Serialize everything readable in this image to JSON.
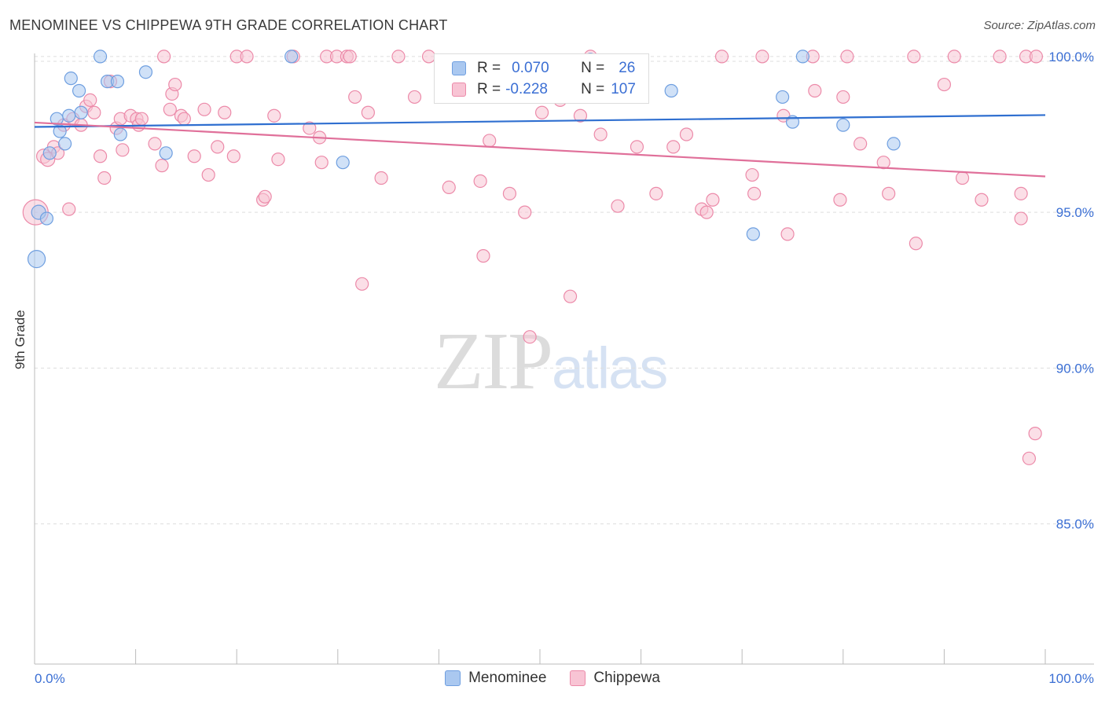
{
  "header": {
    "title": "MENOMINEE VS CHIPPEWA 9TH GRADE CORRELATION CHART",
    "source": "Source: ZipAtlas.com"
  },
  "watermark": {
    "zip": "ZIP",
    "atlas": "atlas"
  },
  "legend": {
    "rows": [
      {
        "r_label": "R =",
        "r_value": "0.070",
        "n_label": "N =",
        "n_value": "26",
        "color": "#aac8f0",
        "border": "#6f9fe0"
      },
      {
        "r_label": "R =",
        "r_value": "-0.228",
        "n_label": "N =",
        "n_value": "107",
        "color": "#f8bccd",
        "border": "#ee8aa8"
      }
    ]
  },
  "bottom_legend": {
    "menominee": "Menominee",
    "chippewa": "Chippewa"
  },
  "colors": {
    "menominee_fill": "#aac8f0",
    "menominee_stroke": "#6f9fe0",
    "menominee_line": "#2f6fd0",
    "chippewa_fill": "#f8c4d4",
    "chippewa_stroke": "#ec8aa9",
    "chippewa_line": "#e0709a",
    "axis_tick_text": "#3b6fd4",
    "grid": "#dddddd"
  },
  "chart_data": {
    "type": "scatter",
    "title": "MENOMINEE VS CHIPPEWA 9TH GRADE CORRELATION CHART",
    "xlabel": "",
    "ylabel": "9th Grade",
    "xlim": [
      0,
      100
    ],
    "ylim": [
      80.5,
      100.3
    ],
    "x_tick_labels": [
      {
        "value": 0,
        "label": "0.0%"
      },
      {
        "value": 100,
        "label": "100.0%"
      }
    ],
    "y_tick_labels": [
      {
        "value": 100,
        "label": "100.0%"
      },
      {
        "value": 95,
        "label": "95.0%"
      },
      {
        "value": 90,
        "label": "90.0%"
      },
      {
        "value": 85,
        "label": "85.0%"
      }
    ],
    "grid": true,
    "legend_position": "top-center",
    "series": [
      {
        "name": "Menominee",
        "trend": {
          "x": [
            0,
            100
          ],
          "y": [
            97.74,
            98.12
          ]
        },
        "points": [
          [
            0.2,
            93.5,
            11
          ],
          [
            0.4,
            95.0,
            9
          ],
          [
            1.2,
            94.8,
            8
          ],
          [
            1.5,
            96.9,
            8
          ],
          [
            2.2,
            98.0,
            8
          ],
          [
            2.5,
            97.6,
            8
          ],
          [
            3.0,
            97.2,
            8
          ],
          [
            3.4,
            98.1,
            8
          ],
          [
            3.6,
            99.3,
            8
          ],
          [
            4.4,
            98.9,
            8
          ],
          [
            4.6,
            98.2,
            8
          ],
          [
            6.5,
            100.0,
            8
          ],
          [
            7.2,
            99.2,
            8
          ],
          [
            8.2,
            99.2,
            8
          ],
          [
            8.5,
            97.5,
            8
          ],
          [
            11.0,
            99.5,
            8
          ],
          [
            13.0,
            96.9,
            8
          ],
          [
            25.4,
            100.0,
            8
          ],
          [
            30.5,
            96.6,
            8
          ],
          [
            55.0,
            99.9,
            8
          ],
          [
            63.0,
            98.9,
            8
          ],
          [
            71.1,
            94.3,
            8
          ],
          [
            74.0,
            98.7,
            8
          ],
          [
            75.0,
            97.9,
            8
          ],
          [
            76.0,
            100.0,
            8
          ],
          [
            80.0,
            97.8,
            8
          ],
          [
            85.0,
            97.2,
            8
          ]
        ]
      },
      {
        "name": "Chippewa",
        "trend": {
          "x": [
            0,
            100
          ],
          "y": [
            97.88,
            96.15
          ]
        },
        "points": [
          [
            0.1,
            95.0,
            16
          ],
          [
            0.9,
            96.8,
            9
          ],
          [
            1.3,
            96.7,
            9
          ],
          [
            1.9,
            97.1,
            8
          ],
          [
            2.3,
            96.9,
            8
          ],
          [
            2.9,
            97.8,
            8
          ],
          [
            3.4,
            95.1,
            8
          ],
          [
            3.8,
            98.0,
            8
          ],
          [
            4.6,
            97.8,
            8
          ],
          [
            5.1,
            98.4,
            8
          ],
          [
            5.5,
            98.6,
            8
          ],
          [
            5.9,
            98.2,
            8
          ],
          [
            6.5,
            96.8,
            8
          ],
          [
            6.9,
            96.1,
            8
          ],
          [
            7.5,
            99.2,
            8
          ],
          [
            8.1,
            97.7,
            8
          ],
          [
            8.5,
            98.0,
            8
          ],
          [
            8.7,
            97.0,
            8
          ],
          [
            9.5,
            98.1,
            8
          ],
          [
            10.1,
            98.0,
            8
          ],
          [
            10.3,
            97.8,
            8
          ],
          [
            10.6,
            98.0,
            8
          ],
          [
            11.9,
            97.2,
            8
          ],
          [
            12.6,
            96.5,
            8
          ],
          [
            12.8,
            100.0,
            8
          ],
          [
            13.4,
            98.3,
            8
          ],
          [
            13.6,
            98.8,
            8
          ],
          [
            13.9,
            99.1,
            8
          ],
          [
            14.5,
            98.1,
            8
          ],
          [
            14.8,
            98.0,
            8
          ],
          [
            15.8,
            96.8,
            8
          ],
          [
            16.8,
            98.3,
            8
          ],
          [
            17.2,
            96.2,
            8
          ],
          [
            18.1,
            97.1,
            8
          ],
          [
            18.8,
            98.2,
            8
          ],
          [
            19.7,
            96.8,
            8
          ],
          [
            20.0,
            100.0,
            8
          ],
          [
            21.0,
            100.0,
            8
          ],
          [
            22.6,
            95.4,
            8
          ],
          [
            22.8,
            95.5,
            8
          ],
          [
            23.7,
            98.1,
            8
          ],
          [
            24.1,
            96.7,
            8
          ],
          [
            25.6,
            100.0,
            8
          ],
          [
            27.2,
            97.7,
            8
          ],
          [
            28.2,
            97.4,
            8
          ],
          [
            28.4,
            96.6,
            8
          ],
          [
            28.9,
            100.0,
            8
          ],
          [
            29.9,
            100.0,
            8
          ],
          [
            30.9,
            100.0,
            8
          ],
          [
            31.2,
            100.0,
            8
          ],
          [
            31.7,
            98.7,
            8
          ],
          [
            32.4,
            92.7,
            8
          ],
          [
            33.0,
            98.2,
            8
          ],
          [
            34.3,
            96.1,
            8
          ],
          [
            36.0,
            100.0,
            8
          ],
          [
            37.6,
            98.7,
            8
          ],
          [
            39.0,
            100.0,
            8
          ],
          [
            41.0,
            95.8,
            8
          ],
          [
            43.0,
            99.4,
            8
          ],
          [
            44.1,
            96.0,
            8
          ],
          [
            44.4,
            93.6,
            8
          ],
          [
            45.0,
            97.3,
            8
          ],
          [
            45.5,
            98.8,
            8
          ],
          [
            47.0,
            95.6,
            8
          ],
          [
            48.5,
            95.0,
            8
          ],
          [
            49.0,
            91.0,
            8
          ],
          [
            50.2,
            98.2,
            8
          ],
          [
            51.0,
            99.6,
            8
          ],
          [
            52.0,
            98.6,
            8
          ],
          [
            53.0,
            92.3,
            8
          ],
          [
            54.0,
            98.1,
            8
          ],
          [
            55.0,
            100.0,
            8
          ],
          [
            56.0,
            97.5,
            8
          ],
          [
            57.7,
            95.2,
            8
          ],
          [
            59.6,
            97.1,
            8
          ],
          [
            61.5,
            95.6,
            8
          ],
          [
            63.2,
            97.1,
            8
          ],
          [
            64.5,
            97.5,
            8
          ],
          [
            66.0,
            95.1,
            8
          ],
          [
            66.5,
            95.0,
            8
          ],
          [
            67.1,
            95.4,
            8
          ],
          [
            68.0,
            100.0,
            8
          ],
          [
            71.0,
            96.2,
            8
          ],
          [
            71.2,
            95.6,
            8
          ],
          [
            72.0,
            100.0,
            8
          ],
          [
            74.1,
            98.1,
            8
          ],
          [
            74.5,
            94.3,
            8
          ],
          [
            77.0,
            100.0,
            8
          ],
          [
            77.2,
            98.9,
            8
          ],
          [
            79.7,
            95.4,
            8
          ],
          [
            80.0,
            98.7,
            8
          ],
          [
            80.4,
            100.0,
            8
          ],
          [
            81.7,
            97.2,
            8
          ],
          [
            84.0,
            96.6,
            8
          ],
          [
            84.5,
            95.6,
            8
          ],
          [
            87.0,
            100.0,
            8
          ],
          [
            87.2,
            94.0,
            8
          ],
          [
            90.0,
            99.1,
            8
          ],
          [
            91.0,
            100.0,
            8
          ],
          [
            91.8,
            96.1,
            8
          ],
          [
            93.7,
            95.4,
            8
          ],
          [
            95.5,
            100.0,
            8
          ],
          [
            97.6,
            95.6,
            8
          ],
          [
            97.6,
            94.8,
            8
          ],
          [
            98.1,
            100.0,
            8
          ],
          [
            98.4,
            87.1,
            8
          ],
          [
            99.0,
            87.9,
            8
          ],
          [
            99.1,
            100.0,
            8
          ]
        ]
      }
    ]
  }
}
